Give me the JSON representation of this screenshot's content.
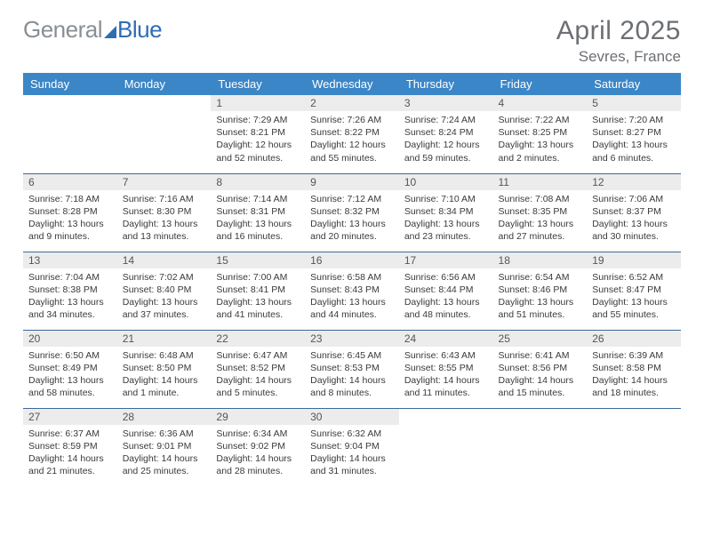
{
  "brand": {
    "part1": "General",
    "part2": "Blue"
  },
  "title": "April 2025",
  "location": "Sevres, France",
  "colors": {
    "header_bg": "#3b86c7",
    "header_text": "#ffffff",
    "daynum_bg": "#ececec",
    "row_divider": "#3b6a9a",
    "brand_gray": "#8a8f94",
    "brand_blue": "#2f6db3",
    "title_color": "#6c6f73",
    "body_text": "#3a3a3a"
  },
  "weekdays": [
    "Sunday",
    "Monday",
    "Tuesday",
    "Wednesday",
    "Thursday",
    "Friday",
    "Saturday"
  ],
  "weeks": [
    [
      {
        "n": "",
        "sunrise": "",
        "sunset": "",
        "daylight": "",
        "empty": true
      },
      {
        "n": "",
        "sunrise": "",
        "sunset": "",
        "daylight": "",
        "empty": true
      },
      {
        "n": "1",
        "sunrise": "Sunrise: 7:29 AM",
        "sunset": "Sunset: 8:21 PM",
        "daylight": "Daylight: 12 hours and 52 minutes."
      },
      {
        "n": "2",
        "sunrise": "Sunrise: 7:26 AM",
        "sunset": "Sunset: 8:22 PM",
        "daylight": "Daylight: 12 hours and 55 minutes."
      },
      {
        "n": "3",
        "sunrise": "Sunrise: 7:24 AM",
        "sunset": "Sunset: 8:24 PM",
        "daylight": "Daylight: 12 hours and 59 minutes."
      },
      {
        "n": "4",
        "sunrise": "Sunrise: 7:22 AM",
        "sunset": "Sunset: 8:25 PM",
        "daylight": "Daylight: 13 hours and 2 minutes."
      },
      {
        "n": "5",
        "sunrise": "Sunrise: 7:20 AM",
        "sunset": "Sunset: 8:27 PM",
        "daylight": "Daylight: 13 hours and 6 minutes."
      }
    ],
    [
      {
        "n": "6",
        "sunrise": "Sunrise: 7:18 AM",
        "sunset": "Sunset: 8:28 PM",
        "daylight": "Daylight: 13 hours and 9 minutes."
      },
      {
        "n": "7",
        "sunrise": "Sunrise: 7:16 AM",
        "sunset": "Sunset: 8:30 PM",
        "daylight": "Daylight: 13 hours and 13 minutes."
      },
      {
        "n": "8",
        "sunrise": "Sunrise: 7:14 AM",
        "sunset": "Sunset: 8:31 PM",
        "daylight": "Daylight: 13 hours and 16 minutes."
      },
      {
        "n": "9",
        "sunrise": "Sunrise: 7:12 AM",
        "sunset": "Sunset: 8:32 PM",
        "daylight": "Daylight: 13 hours and 20 minutes."
      },
      {
        "n": "10",
        "sunrise": "Sunrise: 7:10 AM",
        "sunset": "Sunset: 8:34 PM",
        "daylight": "Daylight: 13 hours and 23 minutes."
      },
      {
        "n": "11",
        "sunrise": "Sunrise: 7:08 AM",
        "sunset": "Sunset: 8:35 PM",
        "daylight": "Daylight: 13 hours and 27 minutes."
      },
      {
        "n": "12",
        "sunrise": "Sunrise: 7:06 AM",
        "sunset": "Sunset: 8:37 PM",
        "daylight": "Daylight: 13 hours and 30 minutes."
      }
    ],
    [
      {
        "n": "13",
        "sunrise": "Sunrise: 7:04 AM",
        "sunset": "Sunset: 8:38 PM",
        "daylight": "Daylight: 13 hours and 34 minutes."
      },
      {
        "n": "14",
        "sunrise": "Sunrise: 7:02 AM",
        "sunset": "Sunset: 8:40 PM",
        "daylight": "Daylight: 13 hours and 37 minutes."
      },
      {
        "n": "15",
        "sunrise": "Sunrise: 7:00 AM",
        "sunset": "Sunset: 8:41 PM",
        "daylight": "Daylight: 13 hours and 41 minutes."
      },
      {
        "n": "16",
        "sunrise": "Sunrise: 6:58 AM",
        "sunset": "Sunset: 8:43 PM",
        "daylight": "Daylight: 13 hours and 44 minutes."
      },
      {
        "n": "17",
        "sunrise": "Sunrise: 6:56 AM",
        "sunset": "Sunset: 8:44 PM",
        "daylight": "Daylight: 13 hours and 48 minutes."
      },
      {
        "n": "18",
        "sunrise": "Sunrise: 6:54 AM",
        "sunset": "Sunset: 8:46 PM",
        "daylight": "Daylight: 13 hours and 51 minutes."
      },
      {
        "n": "19",
        "sunrise": "Sunrise: 6:52 AM",
        "sunset": "Sunset: 8:47 PM",
        "daylight": "Daylight: 13 hours and 55 minutes."
      }
    ],
    [
      {
        "n": "20",
        "sunrise": "Sunrise: 6:50 AM",
        "sunset": "Sunset: 8:49 PM",
        "daylight": "Daylight: 13 hours and 58 minutes."
      },
      {
        "n": "21",
        "sunrise": "Sunrise: 6:48 AM",
        "sunset": "Sunset: 8:50 PM",
        "daylight": "Daylight: 14 hours and 1 minute."
      },
      {
        "n": "22",
        "sunrise": "Sunrise: 6:47 AM",
        "sunset": "Sunset: 8:52 PM",
        "daylight": "Daylight: 14 hours and 5 minutes."
      },
      {
        "n": "23",
        "sunrise": "Sunrise: 6:45 AM",
        "sunset": "Sunset: 8:53 PM",
        "daylight": "Daylight: 14 hours and 8 minutes."
      },
      {
        "n": "24",
        "sunrise": "Sunrise: 6:43 AM",
        "sunset": "Sunset: 8:55 PM",
        "daylight": "Daylight: 14 hours and 11 minutes."
      },
      {
        "n": "25",
        "sunrise": "Sunrise: 6:41 AM",
        "sunset": "Sunset: 8:56 PM",
        "daylight": "Daylight: 14 hours and 15 minutes."
      },
      {
        "n": "26",
        "sunrise": "Sunrise: 6:39 AM",
        "sunset": "Sunset: 8:58 PM",
        "daylight": "Daylight: 14 hours and 18 minutes."
      }
    ],
    [
      {
        "n": "27",
        "sunrise": "Sunrise: 6:37 AM",
        "sunset": "Sunset: 8:59 PM",
        "daylight": "Daylight: 14 hours and 21 minutes."
      },
      {
        "n": "28",
        "sunrise": "Sunrise: 6:36 AM",
        "sunset": "Sunset: 9:01 PM",
        "daylight": "Daylight: 14 hours and 25 minutes."
      },
      {
        "n": "29",
        "sunrise": "Sunrise: 6:34 AM",
        "sunset": "Sunset: 9:02 PM",
        "daylight": "Daylight: 14 hours and 28 minutes."
      },
      {
        "n": "30",
        "sunrise": "Sunrise: 6:32 AM",
        "sunset": "Sunset: 9:04 PM",
        "daylight": "Daylight: 14 hours and 31 minutes."
      },
      {
        "n": "",
        "sunrise": "",
        "sunset": "",
        "daylight": "",
        "empty": true
      },
      {
        "n": "",
        "sunrise": "",
        "sunset": "",
        "daylight": "",
        "empty": true
      },
      {
        "n": "",
        "sunrise": "",
        "sunset": "",
        "daylight": "",
        "empty": true
      }
    ]
  ]
}
